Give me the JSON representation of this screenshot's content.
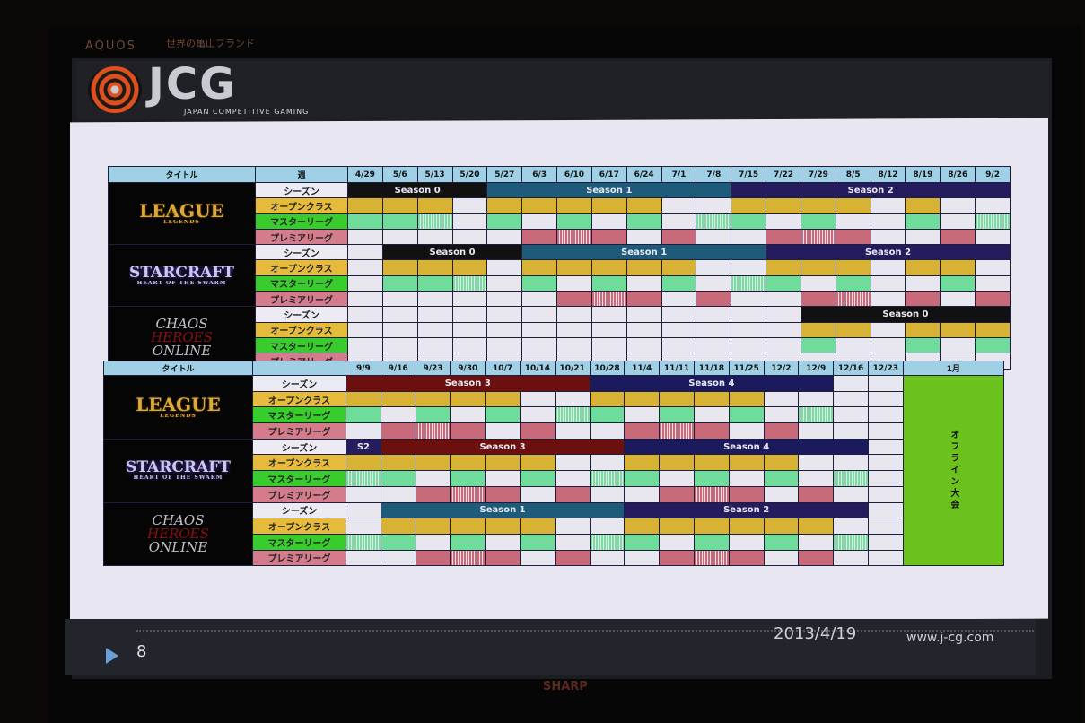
{
  "tv": {
    "brand_top": "AQUOS",
    "tagline": "世界の亀山ブランド",
    "brand_bottom": "SHARP"
  },
  "slide": {
    "logo_text": "JCG",
    "logo_subtitle": "JAPAN COMPETITIVE GAMING",
    "page_number": "8",
    "date": "2013/4/19",
    "url": "www.j-cg.com"
  },
  "row_labels": {
    "season": "シーズン",
    "open": "オープンクラス",
    "master": "マスターリーグ",
    "premier": "プレミアリーグ"
  },
  "legend_codes": {
    "Y": "open match week",
    "G": "master league week",
    "g": "master league (hatched)",
    "R": "premier league week",
    "r": "premier league (hatched)",
    ".": "empty"
  },
  "colors": {
    "open": "#d8b234",
    "master": "#6fdc9c",
    "premier": "#c96a7a",
    "season0": "#111111",
    "season1": "#1e5a7a",
    "season2": "#241c5c",
    "season3": "#6b0f0f",
    "season4": "#1b1a5c",
    "offline": "#6cc21c"
  },
  "sections": [
    {
      "title_header": "タイトル",
      "week_header": "週",
      "weeks": [
        "4/29",
        "5/6",
        "5/13",
        "5/20",
        "5/27",
        "6/3",
        "6/10",
        "6/17",
        "6/24",
        "7/1",
        "7/8",
        "7/15",
        "7/22",
        "7/29",
        "8/5",
        "8/12",
        "8/19",
        "8/26",
        "9/2"
      ],
      "games": [
        {
          "logo": [
            "LEAGUE",
            "LEGENDS"
          ],
          "style": "lol",
          "seasons": [
            {
              "label": "Season 0",
              "from": "4/29",
              "to": "5/20",
              "color": "#111111"
            },
            {
              "label": "Season 1",
              "from": "5/27",
              "to": "7/8",
              "color": "#1e5a7a"
            },
            {
              "label": "Season 2",
              "from": "7/15",
              "to": "9/2",
              "color": "#241c5c"
            }
          ],
          "open": "YYY.YYYYY..YYYY.Y..",
          "master": "GGg.G.G.G.gG.G..G.g",
          "premier": ".....RrR.R..RrR..R."
        },
        {
          "logo": [
            "STARCRAFT",
            "HEART OF THE SWARM"
          ],
          "style": "sc",
          "seasons": [
            {
              "label": "Season 0",
              "from": "5/6",
              "to": "5/27",
              "color": "#111111"
            },
            {
              "label": "Season 1",
              "from": "6/3",
              "to": "7/15",
              "color": "#1e5a7a"
            },
            {
              "label": "Season 2",
              "from": "7/22",
              "to": "9/2",
              "color": "#241c5c"
            }
          ],
          "open": ".YYY.YYYYY..YYY.YY.",
          "master": ".GGg.G.G.G.gG.G..G.",
          "premier": "......RrR.R..Rr.R.R"
        },
        {
          "logo": [
            "CHAOS",
            "HEROES",
            "ONLINE"
          ],
          "style": "ch",
          "seasons": [
            {
              "label": "Season 0",
              "from": "7/29",
              "to": "9/2",
              "color": "#111111"
            }
          ],
          "open": ".............YY.YYY",
          "master": ".............G..G.G",
          "premier": "..................."
        }
      ]
    },
    {
      "title_header": "タイトル",
      "week_header": "",
      "weeks": [
        "9/9",
        "9/16",
        "9/23",
        "9/30",
        "10/7",
        "10/14",
        "10/21",
        "10/28",
        "11/4",
        "11/11",
        "11/18",
        "11/25",
        "12/2",
        "12/9",
        "12/16",
        "12/23"
      ],
      "extra_column": {
        "header": "1月",
        "label": "オフライン大会"
      },
      "games": [
        {
          "logo": [
            "LEAGUE",
            "LEGENDS"
          ],
          "style": "lol",
          "seasons": [
            {
              "label": "Season 3",
              "from": "9/9",
              "to": "10/21",
              "color": "#6b0f0f"
            },
            {
              "label": "Season 4",
              "from": "10/28",
              "to": "12/9",
              "color": "#1b1a5c"
            }
          ],
          "open": "YYYYY..YYYYY....",
          "master": "G.G.G.gG.G.G.g..",
          "premier": ".RrR.R..RrR.R..."
        },
        {
          "logo": [
            "STARCRAFT",
            "HEART OF THE SWARM"
          ],
          "style": "sc",
          "seasons": [
            {
              "label": "S2",
              "from": "9/9",
              "to": "9/9",
              "color": "#241c5c"
            },
            {
              "label": "Season 3",
              "from": "9/16",
              "to": "10/28",
              "color": "#6b0f0f"
            },
            {
              "label": "Season 4",
              "from": "11/4",
              "to": "12/16",
              "color": "#1b1a5c"
            }
          ],
          "open": "YYYYYY..YYYYY...",
          "master": "gG.G.G.gG.G.G.g.",
          "premier": "..RrR.R..RrR.R.."
        },
        {
          "logo": [
            "CHAOS",
            "HEROES",
            "ONLINE"
          ],
          "style": "ch",
          "seasons": [
            {
              "label": "Season 1",
              "from": "9/16",
              "to": "10/28",
              "color": "#1e5a7a"
            },
            {
              "label": "Season 2",
              "from": "11/4",
              "to": "12/16",
              "color": "#241c5c"
            }
          ],
          "open": ".YYYYY..YYYYYY..",
          "master": "gG.G.G.gG.G.G.g.",
          "premier": "..RrR.R..RrR.R.."
        }
      ]
    }
  ]
}
